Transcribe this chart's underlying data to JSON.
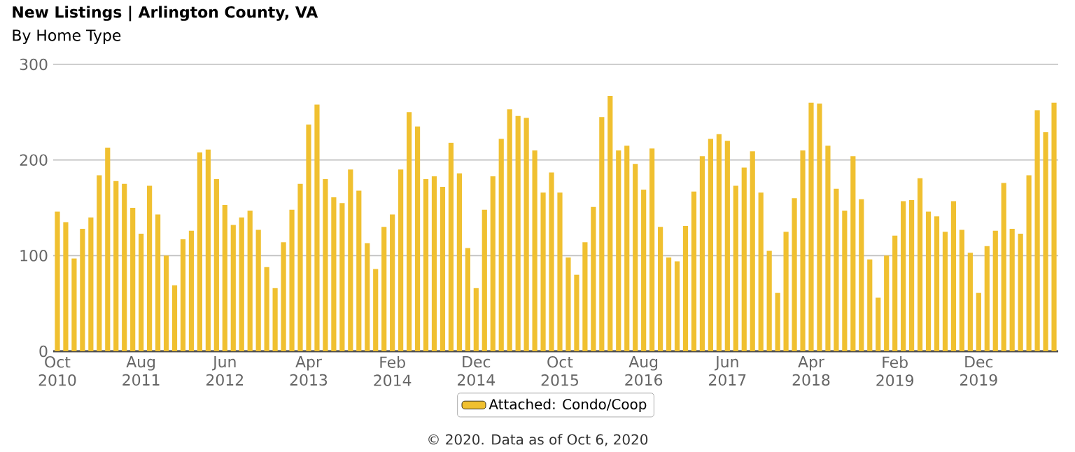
{
  "chart_data": {
    "type": "bar",
    "title": "New Listings | Arlington County, VA",
    "subtitle": "By Home Type",
    "annotations": [
      "© 2020. Data as of Oct 6, 2020"
    ],
    "categories": [
      "Oct 2010",
      null,
      null,
      null,
      null,
      null,
      null,
      null,
      null,
      null,
      "Aug 2011",
      null,
      null,
      null,
      null,
      null,
      null,
      null,
      null,
      null,
      "Jun 2012",
      null,
      null,
      null,
      null,
      null,
      null,
      null,
      null,
      null,
      "Apr 2013",
      null,
      null,
      null,
      null,
      null,
      null,
      null,
      null,
      null,
      "Feb 2014",
      null,
      null,
      null,
      null,
      null,
      null,
      null,
      null,
      null,
      "Dec 2014",
      null,
      null,
      null,
      null,
      null,
      null,
      null,
      null,
      null,
      "Oct 2015",
      null,
      null,
      null,
      null,
      null,
      null,
      null,
      null,
      null,
      "Aug 2016",
      null,
      null,
      null,
      null,
      null,
      null,
      null,
      null,
      null,
      "Jun 2017",
      null,
      null,
      null,
      null,
      null,
      null,
      null,
      null,
      null,
      "Apr 2018",
      null,
      null,
      null,
      null,
      null,
      null,
      null,
      null,
      null,
      "Feb 2019",
      null,
      null,
      null,
      null,
      null,
      null,
      null,
      null,
      null,
      "Dec 2019",
      null,
      null,
      null,
      null,
      null,
      null,
      null,
      null,
      null
    ],
    "series": [
      {
        "name": "Attached: Condo/Coop",
        "color": "#f0c030",
        "values": [
          146,
          135,
          97,
          128,
          140,
          184,
          213,
          178,
          175,
          150,
          123,
          173,
          143,
          100,
          69,
          117,
          126,
          208,
          211,
          180,
          153,
          132,
          140,
          147,
          127,
          88,
          66,
          114,
          148,
          175,
          237,
          258,
          180,
          161,
          155,
          190,
          168,
          113,
          86,
          130,
          143,
          190,
          250,
          235,
          180,
          183,
          172,
          218,
          186,
          108,
          66,
          148,
          183,
          222,
          253,
          246,
          244,
          210,
          166,
          187,
          166,
          98,
          80,
          114,
          151,
          245,
          267,
          210,
          215,
          196,
          169,
          212,
          130,
          98,
          94,
          131,
          167,
          204,
          222,
          227,
          220,
          173,
          192,
          209,
          166,
          105,
          61,
          125,
          160,
          210,
          260,
          259,
          215,
          170,
          147,
          204,
          159,
          96,
          56,
          100,
          121,
          157,
          158,
          181,
          146,
          141,
          125,
          157,
          127,
          103,
          61,
          110,
          126,
          176,
          128,
          123,
          184,
          252,
          229,
          260
        ]
      }
    ],
    "ylim": [
      0,
      300
    ],
    "yticks": [
      0,
      100,
      200,
      300
    ],
    "grid": "y",
    "legend": "bottom"
  }
}
